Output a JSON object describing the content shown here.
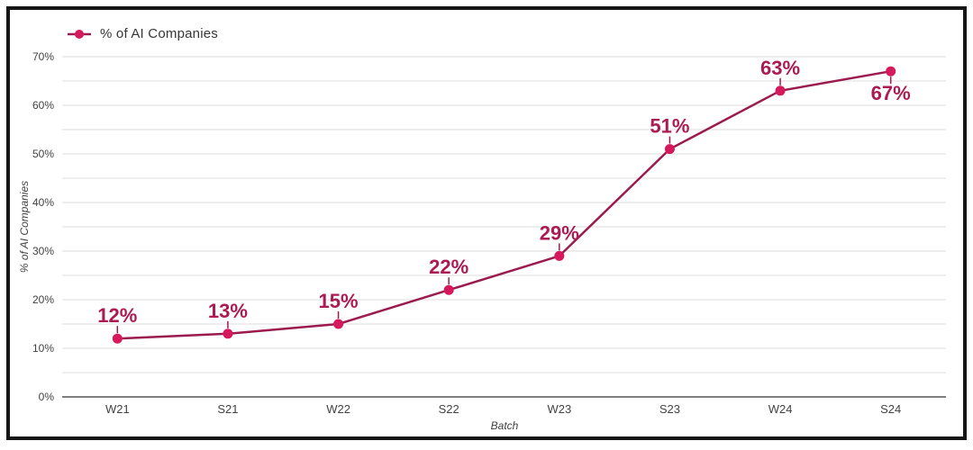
{
  "frame": {
    "border_color": "#161616",
    "background": "#ffffff"
  },
  "legend": {
    "label": "% of AI Companies"
  },
  "chart_data": {
    "type": "line",
    "title": "",
    "xlabel": "Batch",
    "ylabel": "% of AI Companies",
    "categories": [
      "W21",
      "S21",
      "W22",
      "S22",
      "W23",
      "S23",
      "W24",
      "S24"
    ],
    "series": [
      {
        "name": "% of AI Companies",
        "values": [
          12,
          13,
          15,
          22,
          29,
          51,
          63,
          67
        ]
      }
    ],
    "data_labels": [
      "12%",
      "13%",
      "15%",
      "22%",
      "29%",
      "51%",
      "63%",
      "67%"
    ],
    "label_positions": [
      "above",
      "above",
      "above",
      "above",
      "above",
      "above",
      "above",
      "below"
    ],
    "ylim": [
      0,
      70
    ],
    "y_tick_step": 10,
    "grid_step": 5,
    "y_tick_labels": [
      "0%",
      "10%",
      "20%",
      "30%",
      "40%",
      "50%",
      "60%",
      "70%"
    ],
    "grid": true,
    "legend_position": "top-left",
    "colors": {
      "line": "#9c1b4e",
      "point": "#d6195c",
      "label": "#ab1a52",
      "grid": "#dedede",
      "axis": "#555555",
      "tick_text": "#424242"
    }
  }
}
